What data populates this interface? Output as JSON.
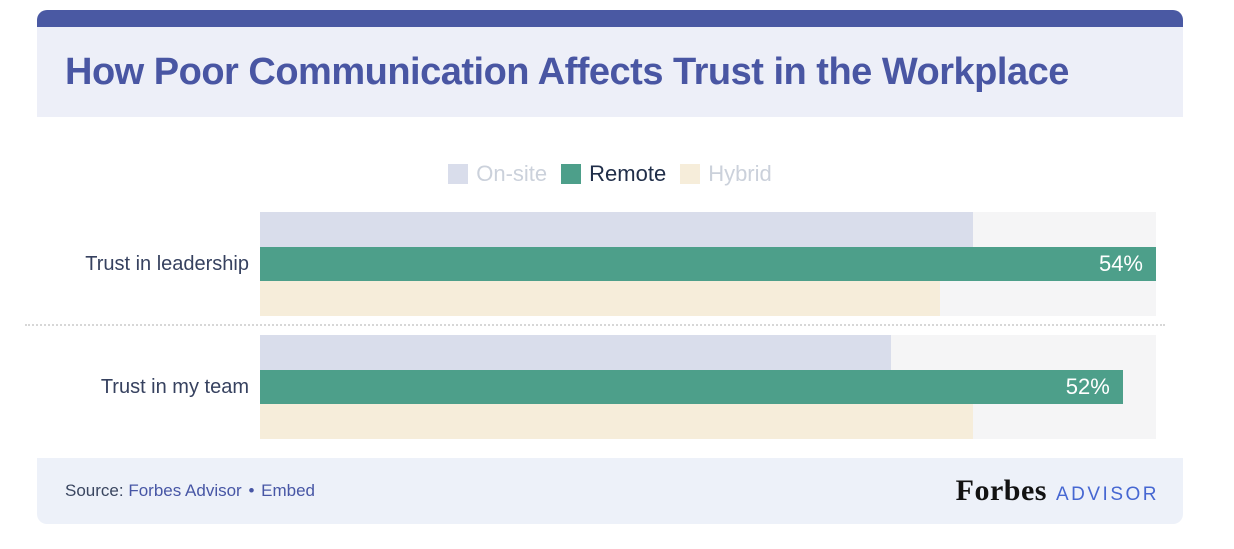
{
  "header": {
    "title": "How Poor Communication Affects Trust in the Workplace"
  },
  "chart_data": {
    "type": "bar",
    "orientation": "horizontal",
    "title": "How Poor Communication Affects Trust in the Workplace",
    "categories": [
      "Trust in leadership",
      "Trust in my team"
    ],
    "series": [
      {
        "name": "On-site",
        "color": "#d9ddeb",
        "values": [
          43,
          38
        ],
        "legend_state": "muted",
        "data_labels": [
          null,
          null
        ]
      },
      {
        "name": "Remote",
        "color": "#4d9f8a",
        "values": [
          54,
          52
        ],
        "legend_state": "active",
        "data_labels": [
          "54%",
          "52%"
        ]
      },
      {
        "name": "Hybrid",
        "color": "#f6edda",
        "values": [
          41,
          43
        ],
        "legend_state": "muted",
        "data_labels": [
          null,
          null
        ]
      }
    ],
    "value_unit": "%",
    "xlim": [
      0,
      54
    ],
    "grid": false,
    "legend_position": "top-center",
    "track_color": "#f5f5f6"
  },
  "footer": {
    "source_label": "Source:",
    "source_link": "Forbes Advisor",
    "separator": "•",
    "embed_label": "Embed",
    "logo_primary": "Forbes",
    "logo_secondary": "ADVISOR"
  },
  "colors": {
    "accent_bar": "#4a59a3",
    "title_text": "#4956a3",
    "header_bg": "#edeff8",
    "footer_bg": "#edf1f9",
    "bar_track": "#f5f5f6",
    "onsite_bar": "#d9ddeb",
    "remote_bar": "#4d9f8a",
    "hybrid_bar": "#f6edda",
    "category_label_text": "#36415f",
    "legend_muted_text": "#cbd1db",
    "legend_active_text": "#202e49",
    "link_text": "#4756a5",
    "advisor_logo_blue": "#4667d2",
    "value_label_text": "#ffffff"
  }
}
